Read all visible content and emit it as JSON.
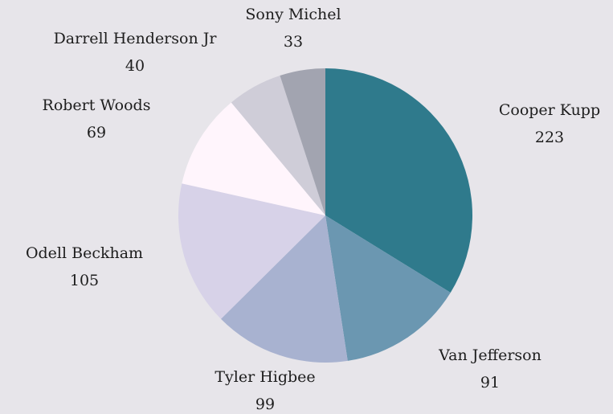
{
  "chart_data": {
    "type": "pie",
    "slices": [
      {
        "label": "Cooper Kupp",
        "value": 223,
        "color": "#2f7a8c"
      },
      {
        "label": "Van Jefferson",
        "value": 91,
        "color": "#6b97b1"
      },
      {
        "label": "Tyler Higbee",
        "value": 99,
        "color": "#a8b2d0"
      },
      {
        "label": "Odell Beckham",
        "value": 105,
        "color": "#d7d2e8"
      },
      {
        "label": "Robert Woods",
        "value": 69,
        "color": "#fff5fc"
      },
      {
        "label": "Darrell Henderson Jr",
        "value": 40,
        "color": "#cfcdd8"
      },
      {
        "label": "Sony Michel",
        "value": 33,
        "color": "#a2a4b0"
      }
    ],
    "start_angle": "12 o'clock",
    "direction": "clockwise",
    "legend": "none",
    "labels": "outside, name above value"
  }
}
